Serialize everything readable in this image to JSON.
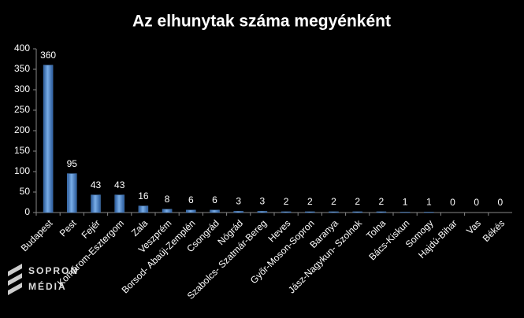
{
  "chart_data": {
    "type": "bar",
    "title": "Az elhunytak száma megyénként",
    "categories": [
      "Budapest",
      "Pest",
      "Fejér",
      "Komárom-Esztergom",
      "Zala",
      "Veszprém",
      "Borsod- Abaúj-Zemplén",
      "Csongrád",
      "Nógrád",
      "Szabolcs- Szatmár-Bereg",
      "Heves",
      "Győr-Moson-Sopron",
      "Baranya",
      "Jász-Nagykun- Szolnok",
      "Tolna",
      "Bács-Kiskun",
      "Somogy",
      "Hajdú-Bihar",
      "Vas",
      "Békés"
    ],
    "values": [
      360,
      95,
      43,
      43,
      16,
      8,
      6,
      6,
      3,
      3,
      2,
      2,
      2,
      2,
      2,
      1,
      1,
      0,
      0,
      0
    ],
    "color": "#4f81bd",
    "data_labels": true,
    "ylim": [
      0,
      400
    ],
    "yticks": [
      0,
      50,
      100,
      150,
      200,
      250,
      300,
      350,
      400
    ],
    "grid": false
  },
  "logo": {
    "line1": "SOPRON",
    "line2": "MÉDIA"
  }
}
